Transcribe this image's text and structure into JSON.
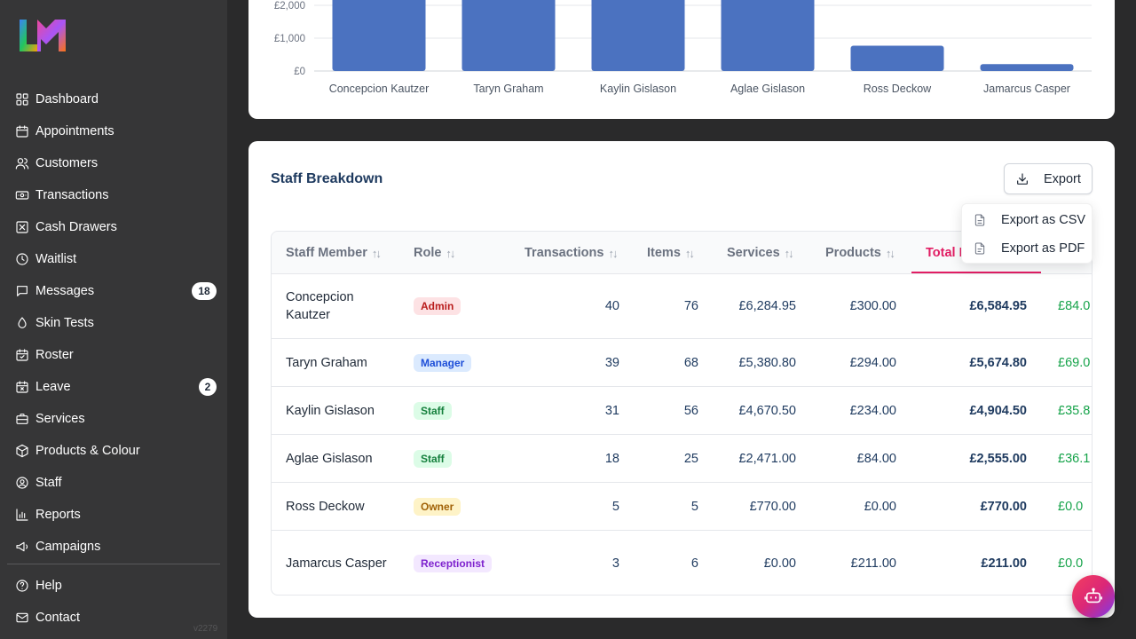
{
  "brand": {
    "logo_text": "LM"
  },
  "sidebar": {
    "items": [
      {
        "label": "Dashboard",
        "icon": "dashboard-icon"
      },
      {
        "label": "Appointments",
        "icon": "calendar-icon"
      },
      {
        "label": "Customers",
        "icon": "users-icon"
      },
      {
        "label": "Transactions",
        "icon": "banknote-icon"
      },
      {
        "label": "Cash Drawers",
        "icon": "cash-drawer-icon"
      },
      {
        "label": "Waitlist",
        "icon": "clock-icon"
      },
      {
        "label": "Messages",
        "icon": "message-icon",
        "badge": "18"
      },
      {
        "label": "Skin Tests",
        "icon": "droplet-icon"
      },
      {
        "label": "Roster",
        "icon": "calendar-check-icon"
      },
      {
        "label": "Leave",
        "icon": "calendar-x-icon",
        "badge": "2"
      },
      {
        "label": "Services",
        "icon": "briefcase-icon"
      },
      {
        "label": "Products & Colour",
        "icon": "box-icon"
      },
      {
        "label": "Staff",
        "icon": "user-circle-icon"
      },
      {
        "label": "Reports",
        "icon": "bar-chart-icon"
      },
      {
        "label": "Campaigns",
        "icon": "megaphone-icon"
      }
    ],
    "footer_items": [
      {
        "label": "Help",
        "icon": "help-circle-icon"
      },
      {
        "label": "Contact",
        "icon": "mail-icon"
      }
    ],
    "version": "v2279"
  },
  "chart_data": {
    "type": "bar",
    "categories": [
      "Concepcion Kautzer",
      "Taryn Graham",
      "Kaylin Gislason",
      "Aglae Gislason",
      "Ross Deckow",
      "Jamarcus Casper"
    ],
    "values": [
      6584.95,
      5674.8,
      4904.5,
      2555.0,
      770.0,
      211.0
    ],
    "y_ticks": [
      "£0",
      "£1,000",
      "£2,000"
    ],
    "ylim_visible": [
      0,
      2000
    ],
    "color": "#4b72c0",
    "grid": true
  },
  "breakdown": {
    "title": "Staff Breakdown",
    "export_label": "Export",
    "export_menu": [
      "Export as CSV",
      "Export as PDF"
    ],
    "columns": [
      "Staff Member",
      "Role",
      "Transactions",
      "Items",
      "Services",
      "Products",
      "Total R"
    ],
    "rows": [
      {
        "name": "Concepcion Kautzer",
        "role": "Admin",
        "role_class": "admin",
        "transactions": "40",
        "items": "76",
        "services": "£6,284.95",
        "products": "£300.00",
        "total": "£6,584.95",
        "extra": "£84.0"
      },
      {
        "name": "Taryn Graham",
        "role": "Manager",
        "role_class": "manager",
        "transactions": "39",
        "items": "68",
        "services": "£5,380.80",
        "products": "£294.00",
        "total": "£5,674.80",
        "extra": "£69.0"
      },
      {
        "name": "Kaylin Gislason",
        "role": "Staff",
        "role_class": "staff",
        "transactions": "31",
        "items": "56",
        "services": "£4,670.50",
        "products": "£234.00",
        "total": "£4,904.50",
        "extra": "£35.8"
      },
      {
        "name": "Aglae Gislason",
        "role": "Staff",
        "role_class": "staff",
        "transactions": "18",
        "items": "25",
        "services": "£2,471.00",
        "products": "£84.00",
        "total": "£2,555.00",
        "extra": "£36.1"
      },
      {
        "name": "Ross Deckow",
        "role": "Owner",
        "role_class": "owner",
        "transactions": "5",
        "items": "5",
        "services": "£770.00",
        "products": "£0.00",
        "total": "£770.00",
        "extra": "£0.0"
      },
      {
        "name": "Jamarcus Casper",
        "role": "Receptionist",
        "role_class": "receptionist",
        "transactions": "3",
        "items": "6",
        "services": "£0.00",
        "products": "£211.00",
        "total": "£211.00",
        "extra": "£0.0"
      }
    ]
  },
  "fab": {
    "icon": "bot-icon"
  }
}
